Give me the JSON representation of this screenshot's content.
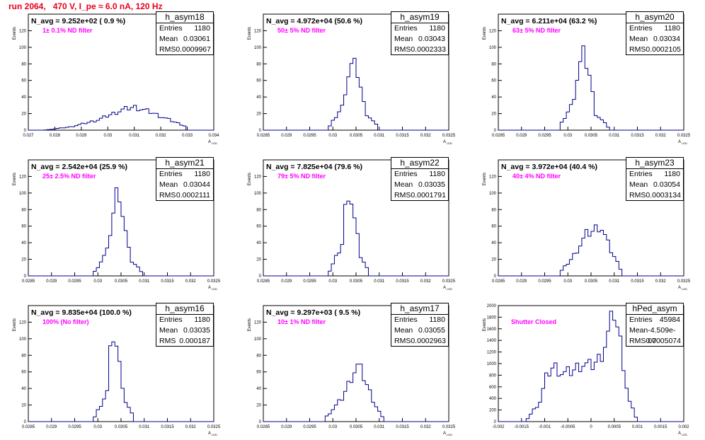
{
  "title": "run 2064,   470 V, I_pe ≈ 6.0 nA, 120 Hz",
  "colors": {
    "title": "#e8001c",
    "histogram": "#00008b",
    "note": "#ff00ff"
  },
  "chart_data": [
    {
      "type": "area",
      "name": "h_asym18",
      "navg": "N_avg = 9.252e+02 ( 0.9 %)",
      "note": "1± 0.1% ND filter",
      "entries": "1180",
      "mean": "0.03061",
      "rms": "0.0009967",
      "ylabel": "Events",
      "xlabel": "A_LED",
      "xlim": [
        0.027,
        0.034
      ],
      "ylim": [
        0,
        140
      ],
      "xticks": [
        "0.027",
        "0.028",
        "0.029",
        "0.03",
        "0.031",
        "0.032",
        "0.033",
        "0.034"
      ],
      "yticks": [
        "0",
        "20",
        "40",
        "60",
        "80",
        "100",
        "120"
      ],
      "x": [
        0.0276,
        0.0286,
        0.0296,
        0.0302,
        0.0306,
        0.031,
        0.0316,
        0.0322,
        0.0326,
        0.033
      ],
      "values": [
        0,
        4,
        12,
        20,
        25,
        28,
        22,
        14,
        9,
        4
      ]
    },
    {
      "type": "area",
      "name": "h_asym19",
      "navg": "N_avg = 4.972e+04 (50.6 %)",
      "note": "50± 5% ND filter",
      "entries": "1180",
      "mean": "0.03043",
      "rms": "0.0002333",
      "ylabel": "Events",
      "xlabel": "A_LED",
      "xlim": [
        0.0285,
        0.0325
      ],
      "ylim": [
        0,
        140
      ],
      "xticks": [
        "0.0285",
        "0.029",
        "0.0295",
        "0.03",
        "0.0305",
        "0.031",
        "0.0315",
        "0.032",
        "0.0325"
      ],
      "yticks": [
        "0",
        "20",
        "40",
        "60",
        "80",
        "100",
        "120"
      ],
      "x": [
        0.0299,
        0.0302,
        0.03032,
        0.03043,
        0.03055,
        0.0307,
        0.031
      ],
      "values": [
        2,
        28,
        65,
        82,
        67,
        22,
        2
      ]
    },
    {
      "type": "area",
      "name": "h_asym20",
      "navg": "N_avg = 6.211e+04 (63.2 %)",
      "note": "63± 5% ND filter",
      "entries": "1180",
      "mean": "0.03034",
      "rms": "0.0002105",
      "ylabel": "Events",
      "xlabel": "A_LED",
      "xlim": [
        0.0285,
        0.0325
      ],
      "ylim": [
        0,
        140
      ],
      "xticks": [
        "0.0285",
        "0.029",
        "0.0295",
        "0.03",
        "0.0305",
        "0.031",
        "0.0315",
        "0.032",
        "0.0325"
      ],
      "yticks": [
        "0",
        "20",
        "40",
        "60",
        "80",
        "100",
        "120"
      ],
      "x": [
        0.0298,
        0.0301,
        0.03024,
        0.03034,
        0.03045,
        0.0306,
        0.0309
      ],
      "values": [
        2,
        32,
        75,
        92,
        72,
        20,
        2
      ]
    },
    {
      "type": "area",
      "name": "h_asym21",
      "navg": "N_avg = 2.542e+04 (25.9 %)",
      "note": "25± 2.5% ND filter",
      "entries": "1180",
      "mean": "0.03044",
      "rms": "0.0002111",
      "ylabel": "Events",
      "xlabel": "A_LED",
      "xlim": [
        0.0285,
        0.0325
      ],
      "ylim": [
        0,
        140
      ],
      "xticks": [
        "0.0285",
        "0.029",
        "0.0295",
        "0.03",
        "0.0305",
        "0.031",
        "0.0315",
        "0.032",
        "0.0325"
      ],
      "yticks": [
        "0",
        "20",
        "40",
        "60",
        "80",
        "100",
        "120"
      ],
      "x": [
        0.0299,
        0.0302,
        0.03034,
        0.03044,
        0.03054,
        0.0307,
        0.031
      ],
      "values": [
        2,
        30,
        78,
        112,
        72,
        20,
        2
      ]
    },
    {
      "type": "area",
      "name": "h_asym22",
      "navg": "N_avg = 7.825e+04 (79.6 %)",
      "note": "79± 5% ND filter",
      "entries": "1180",
      "mean": "0.03035",
      "rms": "0.0001791",
      "ylabel": "Events",
      "xlabel": "A_LED",
      "xlim": [
        0.0285,
        0.0325
      ],
      "ylim": [
        0,
        140
      ],
      "xticks": [
        "0.0285",
        "0.029",
        "0.0295",
        "0.03",
        "0.0305",
        "0.031",
        "0.0315",
        "0.032",
        "0.0325"
      ],
      "yticks": [
        "0",
        "20",
        "40",
        "60",
        "80",
        "100",
        "120"
      ],
      "x": [
        0.0299,
        0.0302,
        0.03027,
        0.03035,
        0.03044,
        0.0306,
        0.0308
      ],
      "values": [
        2,
        38,
        82,
        108,
        76,
        24,
        2
      ]
    },
    {
      "type": "area",
      "name": "h_asym23",
      "navg": "N_avg = 3.972e+04 (40.4 %)",
      "note": "40± 4% ND filter",
      "entries": "1180",
      "mean": "0.03054",
      "rms": "0.0003134",
      "ylabel": "Events",
      "xlabel": "A_LED",
      "xlim": [
        0.0285,
        0.0325
      ],
      "ylim": [
        0,
        140
      ],
      "xticks": [
        "0.0285",
        "0.029",
        "0.0295",
        "0.03",
        "0.0305",
        "0.031",
        "0.0315",
        "0.032",
        "0.0325"
      ],
      "yticks": [
        "0",
        "20",
        "40",
        "60",
        "80",
        "100",
        "120"
      ],
      "x": [
        0.0298,
        0.0301,
        0.0304,
        0.03054,
        0.0307,
        0.0309,
        0.0312
      ],
      "values": [
        2,
        22,
        50,
        54,
        62,
        34,
        2
      ]
    },
    {
      "type": "area",
      "name": "h_asym16",
      "navg": "N_avg = 9.835e+04 (100.0 %)",
      "note": "100% (No filter)",
      "entries": "1180",
      "mean": "0.03035",
      "rms": "0.000187",
      "ylabel": "Events",
      "xlabel": "A_LED",
      "xlim": [
        0.0285,
        0.0325
      ],
      "ylim": [
        0,
        140
      ],
      "xticks": [
        "0.0285",
        "0.029",
        "0.0295",
        "0.03",
        "0.0305",
        "0.031",
        "0.0315",
        "0.032",
        "0.0325"
      ],
      "yticks": [
        "0",
        "20",
        "40",
        "60",
        "80",
        "100",
        "120"
      ],
      "x": [
        0.0299,
        0.0302,
        0.03027,
        0.03035,
        0.03044,
        0.0306,
        0.0308
      ],
      "values": [
        2,
        36,
        84,
        110,
        76,
        24,
        2
      ]
    },
    {
      "type": "area",
      "name": "h_asym17",
      "navg": "N_avg = 9.297e+03 ( 9.5 %)",
      "note": "10± 1% ND filter",
      "entries": "1180",
      "mean": "0.03055",
      "rms": "0.0002963",
      "ylabel": "Events",
      "xlabel": "A_LED",
      "xlim": [
        0.0285,
        0.0325
      ],
      "ylim": [
        0,
        140
      ],
      "xticks": [
        "0.0285",
        "0.029",
        "0.0295",
        "0.03",
        "0.0305",
        "0.031",
        "0.0315",
        "0.032",
        "0.0325"
      ],
      "yticks": [
        "0",
        "20",
        "40",
        "60",
        "80",
        "100",
        "120"
      ],
      "x": [
        0.0298,
        0.0302,
        0.03045,
        0.03055,
        0.03065,
        0.0309,
        0.0311
      ],
      "values": [
        2,
        28,
        60,
        68,
        56,
        22,
        2
      ]
    },
    {
      "type": "area",
      "name": "hPed_asym",
      "navg": "",
      "note": "Shutter Closed",
      "entries": "45984",
      "mean": "-4.509e-07",
      "rms": "0.0005074",
      "ylabel": "Events",
      "xlabel": "A_LED",
      "xlim": [
        -0.002,
        0.002
      ],
      "ylim": [
        0,
        2000
      ],
      "xticks": [
        "-0.002",
        "-0.0015",
        "-0.001",
        "-0.0005",
        "0",
        "0.0005",
        "0.001",
        "0.0015",
        "0.002"
      ],
      "yticks": [
        "0",
        "200",
        "400",
        "600",
        "800",
        "1000",
        "1200",
        "1400",
        "1600",
        "1800",
        "2000"
      ],
      "x": [
        -0.0014,
        -0.0011,
        -0.00095,
        -0.0008,
        -0.0006,
        -0.0004,
        -0.0002,
        0.0,
        0.0002,
        0.00035,
        0.0005,
        0.00065,
        0.0008,
        0.001
      ],
      "values": [
        20,
        350,
        800,
        960,
        820,
        870,
        1000,
        950,
        1100,
        1450,
        1900,
        1300,
        400,
        20
      ]
    }
  ]
}
